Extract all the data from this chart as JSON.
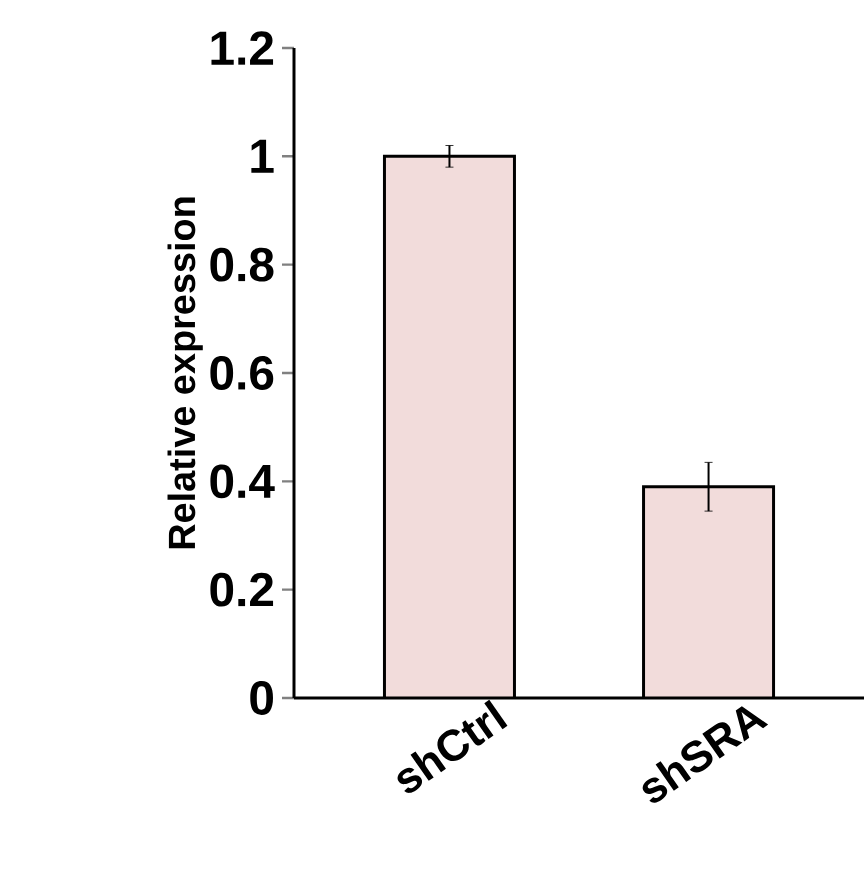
{
  "chart_data": {
    "type": "bar",
    "ylabel": "Relative expression",
    "categories": [
      "shCtrl",
      "shSRA"
    ],
    "values": [
      1.0,
      0.39
    ],
    "errors": [
      0.02,
      0.045
    ],
    "color": "#f2dcdb",
    "ylim": [
      0,
      1.2
    ],
    "yticks": [
      0,
      0.2,
      0.4,
      0.6,
      0.8,
      1,
      1.2
    ],
    "grid": false
  }
}
